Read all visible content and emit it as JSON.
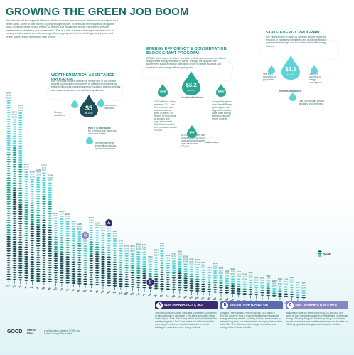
{
  "header": {
    "title": "GROWING THE GREEN JOB BOOM",
    "intro": "The stimulus bill has supplied billions of dollars to states and municipal entities to fund projects for a better world. Some of that money is going into green jobs: in particular, three separate programs focus on reducing the cost of energy for homes and businesses across the country, through weatherization, efficiency and conservation. This is a look at three of the major initiatives that are funding weatherization and other energy efficiency projects, how the funding is being used, and where states rank in the money they receive."
  },
  "programs": {
    "wap": {
      "title": "WEATHERIZATION ASSISTANCE PROGRAM",
      "text": "WAP provides funds to reduce the energy bills of low-income families by increasing their homes to make them more energy efficient. Measures include improving insulation, sealing air leaks, and replacing windows and inefficient appliances.",
      "amount": "$5",
      "unit": "BILLION",
      "how_label": "How it is distributed",
      "how_text": "By a formula that takes into account a state's:",
      "factor1": "Climate conditions",
      "factor2": "Low-income population",
      "factor3": "Residential energy expenditures by low-income households"
    },
    "eecbg": {
      "title": "ENERGY EFFICIENCY & CONSERVATION BLOCK GRANT PROGRAM",
      "text": "EECBG gives money to states, counties, and city governments and tribes to implement energy efficiency projects. Through the program, the government builds a publicly accessible profile to retrofit buildings and implement other energy efficiency programs.",
      "amount": "$3.2",
      "unit": "BILLION",
      "sub1_amount": "$2.8",
      "sub1_unit": "BILLION",
      "sub1_text": "$770 million to states, territories, D.C., and U.S. territories and jurisdictions to be spent in grants. 60 percent of which must go to cities with populations under 35,000 and counties with populations under 200,000.",
      "sub1_text2": "$1.9 billion to cities with populations of 35,000 or more and counties with populations over 200,000.",
      "sub2_amount": "$450",
      "sub2_unit": "MILLION",
      "sub2_text": "Competitive grants for a Retrofit Ramp-up to support the biggest, innovative, large-scale energy efficiency building retrofit projects.",
      "sub3_amount": "$54",
      "sub3_unit": "MILLION",
      "sub3_text": "Indian tribes",
      "how_label": "How it is distributed"
    },
    "sep": {
      "title": "STATE ENERGY PROGRAM",
      "text": "SEP gives money to states to increase energy efficiency: reducing or increasing the lighting and building efficiency, government buildings, and to invest in renewable energy sources.",
      "amount": "$3.1",
      "unit": "BILLION",
      "how_label": "How it is distributed",
      "factor1": "One third according to population",
      "factor2": "One third according to energy consumption",
      "factor3": "One third equally among all states and territories"
    }
  },
  "chart_data": {
    "type": "bar",
    "title": "GROWING THE GREEN JOB BOOM",
    "xlabel": "",
    "ylabel": "",
    "categories": [
      "CA",
      "NY",
      "TX",
      "FL",
      "PA",
      "IL",
      "OH",
      "MI",
      "NC",
      "GA",
      "NJ",
      "VA",
      "MA",
      "WA",
      "IN",
      "WI",
      "MN",
      "MO",
      "TN",
      "AZ",
      "MD",
      "KY",
      "LA",
      "AL",
      "OR",
      "SC",
      "CO",
      "CT",
      "OK",
      "IA",
      "KS",
      "MS",
      "AR",
      "UT",
      "NE",
      "NV",
      "WV",
      "NM",
      "ME",
      "ID",
      "NH",
      "MT",
      "HI",
      "RI",
      "ND",
      "DE",
      "SD",
      "VT",
      "AK",
      "WY",
      "DC"
    ],
    "series": [
      {
        "name": "WAP",
        "values": [
          185,
          394,
          327,
          175,
          253,
          242,
          267,
          243,
          132,
          125,
          119,
          95,
          122,
          60,
          132,
          141,
          132,
          129,
          99,
          57,
          61,
          71,
          50,
          72,
          38,
          58,
          79,
          64,
          60,
          80,
          56,
          49,
          48,
          37,
          41,
          37,
          37,
          26,
          42,
          30,
          23,
          26,
          5,
          20,
          25,
          13,
          24,
          17,
          18,
          10,
          8
        ]
      },
      {
        "name": "EECBG",
        "values": [
          351,
          176,
          174,
          163,
          93,
          107,
          97,
          106,
          65,
          67,
          77,
          66,
          55,
          49,
          56,
          44,
          39,
          37,
          53,
          54,
          42,
          31,
          37,
          34,
          26,
          32,
          38,
          20,
          24,
          19,
          18,
          19,
          16,
          22,
          12,
          17,
          11,
          11,
          9,
          11,
          9,
          8,
          10,
          9,
          7,
          8,
          6,
          7,
          8,
          7,
          10
        ]
      },
      {
        "name": "SEP",
        "values": [
          226,
          123,
          218,
          126,
          102,
          101,
          96,
          82,
          72,
          82,
          73,
          70,
          54,
          60,
          68,
          55,
          55,
          57,
          63,
          55,
          51,
          52,
          72,
          55,
          42,
          51,
          49,
          38,
          46,
          41,
          39,
          41,
          40,
          35,
          31,
          35,
          32,
          32,
          27,
          28,
          25,
          25,
          25,
          23,
          23,
          24,
          23,
          22,
          28,
          24,
          22
        ]
      }
    ],
    "annotations": [
      {
        "label": "A",
        "category": "MO"
      },
      {
        "label": "B",
        "category": "OR"
      },
      {
        "label": "C",
        "category": "WA"
      }
    ],
    "total_label": "$5M"
  },
  "case_studies": [
    {
      "badge": "A",
      "title": "WAP: KANSAS CITY, MO",
      "color": "#3a2a72",
      "text": "The city council of Kansas City voted to leverage $156 million in stimulus funds to designate a 150-block area of the city a Green Impact Zone. The money will be used for initiatives like weatherizing and a Job Corps center that will train and hire unemployed residents in weatherization and to retrofit buildings to make them more energy efficient."
    },
    {
      "badge": "B",
      "title": "EECBG: PORTLAND, OR",
      "color": "#5c6bb0",
      "text": "Portland Energy Works Portland will use $2.3 million in EECBG money to fund a program that finances residential energy efficiency retrofits, enabling Portland homeowners to take out long-term, low-interest loans and repay them on their utility bills. This will create jobs through contractors and energy efficient house retrofits."
    },
    {
      "badge": "C",
      "title": "SEP: WASHINGTON STATE",
      "color": "#8a86c6",
      "text": "Washington state will spend more than $26 million in SEP funds on the Community-wide Urban Retrofit and Commercial Energy Efficiency Program. The money will go to moderate-income households and small businesses across the state for efficiency upgrades, with grants and loans for retrofits."
    }
  ],
  "footer": {
    "logo": "GOOD",
    "logo2": "GREEN ROLL",
    "credit": "A collaboration between GOOD and Trutena Hung & Steve Nere"
  },
  "colors": {
    "wap": "#1f4e56",
    "eecbg": "#2aa892",
    "sep": "#5fd3d8",
    "accent": "#1b8e86"
  }
}
